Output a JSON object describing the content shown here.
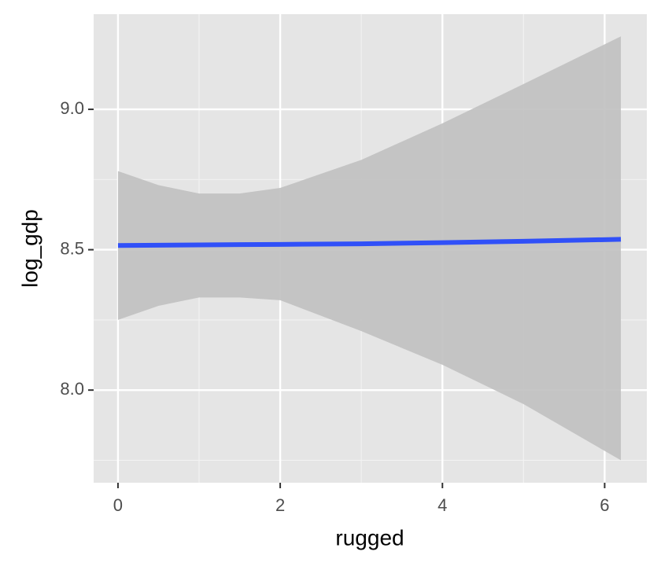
{
  "chart_data": {
    "type": "line",
    "xlabel": "rugged",
    "ylabel": "log_gdp",
    "x": [
      0,
      0.5,
      1,
      1.5,
      2,
      3,
      4,
      5,
      6.2
    ],
    "y": [
      8.515,
      8.516,
      8.517,
      8.518,
      8.519,
      8.521,
      8.525,
      8.53,
      8.537
    ],
    "ymin": [
      8.25,
      8.3,
      8.33,
      8.33,
      8.32,
      8.21,
      8.09,
      7.95,
      7.75
    ],
    "ymax": [
      8.78,
      8.73,
      8.7,
      8.7,
      8.72,
      8.82,
      8.95,
      9.09,
      9.26
    ],
    "color": "#3050f8",
    "band_color": "#c0c0c0",
    "xlim": [
      -0.3,
      6.52
    ],
    "ylim": [
      7.67,
      9.339
    ],
    "xticks": [
      0,
      2,
      4,
      6
    ],
    "yticks": [
      {
        "value": 8,
        "label": "8.0"
      },
      {
        "value": 8.5,
        "label": "8.5"
      },
      {
        "value": 9,
        "label": "9.0"
      }
    ],
    "xminor": [
      1,
      3,
      5
    ],
    "yminor": [
      7.75,
      8.25,
      8.75
    ],
    "grid": true
  }
}
